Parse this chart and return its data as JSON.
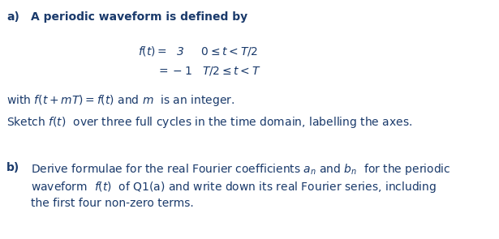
{
  "bg_color": "#ffffff",
  "text_color": "#1a3a6b",
  "figsize": [
    6.15,
    2.95
  ],
  "dpi": 100,
  "font_size": 10.0,
  "font_family": "DejaVu Sans",
  "font_weight": "bold"
}
